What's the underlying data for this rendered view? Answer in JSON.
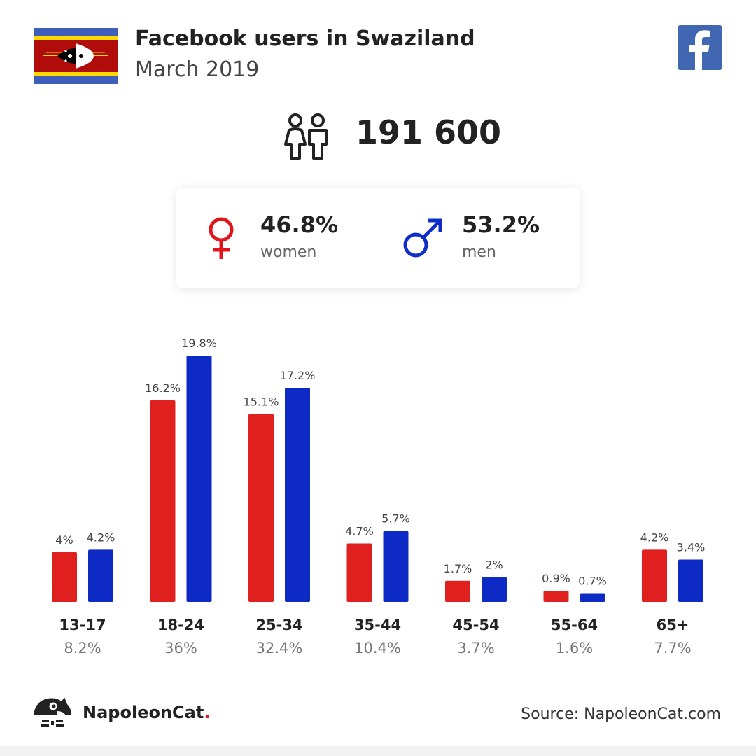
{
  "header": {
    "title": "Facebook users in Swaziland",
    "subtitle": "March 2019"
  },
  "total_users": "191 600",
  "gender": {
    "women": {
      "percent": "46.8%",
      "label": "women",
      "color": "#e0161c"
    },
    "men": {
      "percent": "53.2%",
      "label": "men",
      "color": "#0f2dc8"
    }
  },
  "colors": {
    "women": "#e0201e",
    "men": "#0d2ac4",
    "facebook": "#4267b2"
  },
  "chart_data": {
    "type": "bar",
    "categories": [
      "13-17",
      "18-24",
      "25-34",
      "35-44",
      "45-54",
      "55-64",
      "65+"
    ],
    "category_totals": [
      "8.2%",
      "36%",
      "32.4%",
      "10.4%",
      "3.7%",
      "1.6%",
      "7.7%"
    ],
    "series": [
      {
        "name": "women",
        "values": [
          4,
          16.2,
          15.1,
          4.7,
          1.7,
          0.9,
          4.2
        ],
        "labels": [
          "4%",
          "16.2%",
          "15.1%",
          "4.7%",
          "1.7%",
          "0.9%",
          "4.2%"
        ]
      },
      {
        "name": "men",
        "values": [
          4.2,
          19.8,
          17.2,
          5.7,
          2,
          0.7,
          3.4
        ],
        "labels": [
          "4.2%",
          "19.8%",
          "17.2%",
          "5.7%",
          "2%",
          "0.7%",
          "3.4%"
        ]
      }
    ],
    "ylim": [
      0,
      19.8
    ],
    "grid": false,
    "legend": "none"
  },
  "footer": {
    "brand": "NapoleonCat",
    "brand_dot": ".",
    "source": "Source: NapoleonCat.com"
  }
}
